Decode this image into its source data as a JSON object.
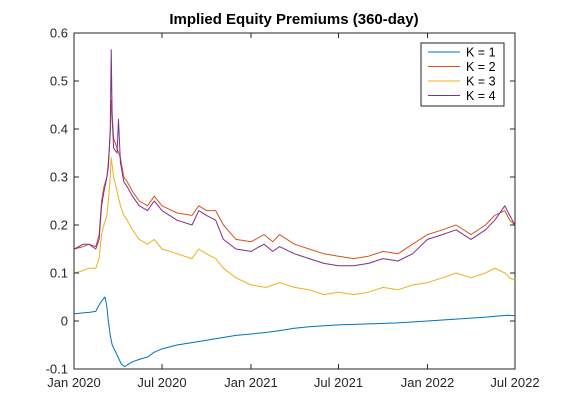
{
  "chart_data": {
    "type": "line",
    "title": "Implied Equity Premiums (360-day)",
    "xlabel": "",
    "ylabel": "",
    "x_ticks": [
      "Jan 2020",
      "Jul 2020",
      "Jan 2021",
      "Jul 2021",
      "Jan 2022",
      "Jul 2022"
    ],
    "xlim": [
      "2020-01-01",
      "2022-07-01"
    ],
    "ylim": [
      -0.1,
      0.6
    ],
    "y_ticks": [
      "-0.1",
      "0",
      "0.1",
      "0.2",
      "0.3",
      "0.4",
      "0.5",
      "0.6"
    ],
    "grid": false,
    "legend_position": "top-right",
    "series": [
      {
        "name": "K = 1",
        "color": "#0072BD",
        "points": [
          [
            "2020-01-02",
            0.015
          ],
          [
            "2020-01-20",
            0.017
          ],
          [
            "2020-02-01",
            0.018
          ],
          [
            "2020-02-15",
            0.02
          ],
          [
            "2020-02-20",
            0.03
          ],
          [
            "2020-02-26",
            0.04
          ],
          [
            "2020-03-01",
            0.045
          ],
          [
            "2020-03-05",
            0.05
          ],
          [
            "2020-03-09",
            0.03
          ],
          [
            "2020-03-12",
            0.0
          ],
          [
            "2020-03-16",
            -0.03
          ],
          [
            "2020-03-20",
            -0.05
          ],
          [
            "2020-03-25",
            -0.06
          ],
          [
            "2020-04-01",
            -0.075
          ],
          [
            "2020-04-08",
            -0.09
          ],
          [
            "2020-04-15",
            -0.095
          ],
          [
            "2020-04-22",
            -0.09
          ],
          [
            "2020-05-01",
            -0.085
          ],
          [
            "2020-05-15",
            -0.08
          ],
          [
            "2020-06-01",
            -0.075
          ],
          [
            "2020-06-15",
            -0.065
          ],
          [
            "2020-07-01",
            -0.058
          ],
          [
            "2020-08-01",
            -0.05
          ],
          [
            "2020-09-01",
            -0.045
          ],
          [
            "2020-10-01",
            -0.04
          ],
          [
            "2020-11-01",
            -0.035
          ],
          [
            "2020-12-01",
            -0.03
          ],
          [
            "2021-01-01",
            -0.027
          ],
          [
            "2021-02-01",
            -0.024
          ],
          [
            "2021-03-01",
            -0.02
          ],
          [
            "2021-04-01",
            -0.015
          ],
          [
            "2021-05-01",
            -0.012
          ],
          [
            "2021-06-01",
            -0.01
          ],
          [
            "2021-07-01",
            -0.008
          ],
          [
            "2021-09-01",
            -0.006
          ],
          [
            "2021-11-01",
            -0.004
          ],
          [
            "2022-01-01",
            0.0
          ],
          [
            "2022-03-01",
            0.004
          ],
          [
            "2022-05-01",
            0.008
          ],
          [
            "2022-06-15",
            0.012
          ],
          [
            "2022-07-01",
            0.011
          ]
        ]
      },
      {
        "name": "K = 2",
        "color": "#D95319",
        "points": [
          [
            "2020-01-02",
            0.15
          ],
          [
            "2020-01-20",
            0.155
          ],
          [
            "2020-02-01",
            0.16
          ],
          [
            "2020-02-15",
            0.155
          ],
          [
            "2020-02-22",
            0.18
          ],
          [
            "2020-02-27",
            0.25
          ],
          [
            "2020-03-03",
            0.28
          ],
          [
            "2020-03-09",
            0.3
          ],
          [
            "2020-03-12",
            0.33
          ],
          [
            "2020-03-16",
            0.39
          ],
          [
            "2020-03-18",
            0.46
          ],
          [
            "2020-03-23",
            0.38
          ],
          [
            "2020-03-30",
            0.36
          ],
          [
            "2020-04-06",
            0.34
          ],
          [
            "2020-04-13",
            0.3
          ],
          [
            "2020-04-20",
            0.29
          ],
          [
            "2020-05-01",
            0.27
          ],
          [
            "2020-05-15",
            0.25
          ],
          [
            "2020-06-01",
            0.24
          ],
          [
            "2020-06-15",
            0.26
          ],
          [
            "2020-07-01",
            0.24
          ],
          [
            "2020-08-01",
            0.225
          ],
          [
            "2020-09-01",
            0.22
          ],
          [
            "2020-09-15",
            0.24
          ],
          [
            "2020-10-01",
            0.23
          ],
          [
            "2020-10-20",
            0.23
          ],
          [
            "2020-11-05",
            0.2
          ],
          [
            "2020-12-01",
            0.17
          ],
          [
            "2021-01-01",
            0.165
          ],
          [
            "2021-01-28",
            0.18
          ],
          [
            "2021-02-15",
            0.165
          ],
          [
            "2021-03-01",
            0.18
          ],
          [
            "2021-04-01",
            0.16
          ],
          [
            "2021-05-01",
            0.15
          ],
          [
            "2021-06-01",
            0.14
          ],
          [
            "2021-07-01",
            0.135
          ],
          [
            "2021-08-01",
            0.13
          ],
          [
            "2021-09-01",
            0.135
          ],
          [
            "2021-10-01",
            0.145
          ],
          [
            "2021-11-01",
            0.14
          ],
          [
            "2021-12-01",
            0.16
          ],
          [
            "2022-01-01",
            0.18
          ],
          [
            "2022-02-01",
            0.19
          ],
          [
            "2022-03-01",
            0.2
          ],
          [
            "2022-04-01",
            0.18
          ],
          [
            "2022-05-01",
            0.2
          ],
          [
            "2022-05-20",
            0.22
          ],
          [
            "2022-06-10",
            0.23
          ],
          [
            "2022-06-20",
            0.21
          ],
          [
            "2022-07-01",
            0.2
          ]
        ]
      },
      {
        "name": "K = 3",
        "color": "#EDB120",
        "points": [
          [
            "2020-01-02",
            0.1
          ],
          [
            "2020-01-20",
            0.105
          ],
          [
            "2020-02-01",
            0.11
          ],
          [
            "2020-02-15",
            0.11
          ],
          [
            "2020-02-22",
            0.13
          ],
          [
            "2020-02-27",
            0.18
          ],
          [
            "2020-03-03",
            0.2
          ],
          [
            "2020-03-09",
            0.22
          ],
          [
            "2020-03-12",
            0.25
          ],
          [
            "2020-03-16",
            0.3
          ],
          [
            "2020-03-18",
            0.34
          ],
          [
            "2020-03-23",
            0.3
          ],
          [
            "2020-03-30",
            0.27
          ],
          [
            "2020-04-06",
            0.24
          ],
          [
            "2020-04-13",
            0.22
          ],
          [
            "2020-04-20",
            0.21
          ],
          [
            "2020-05-01",
            0.19
          ],
          [
            "2020-05-15",
            0.17
          ],
          [
            "2020-06-01",
            0.16
          ],
          [
            "2020-06-15",
            0.17
          ],
          [
            "2020-07-01",
            0.15
          ],
          [
            "2020-08-01",
            0.14
          ],
          [
            "2020-09-01",
            0.13
          ],
          [
            "2020-09-15",
            0.15
          ],
          [
            "2020-10-01",
            0.14
          ],
          [
            "2020-10-20",
            0.13
          ],
          [
            "2020-11-05",
            0.11
          ],
          [
            "2020-12-01",
            0.09
          ],
          [
            "2021-01-01",
            0.075
          ],
          [
            "2021-02-01",
            0.07
          ],
          [
            "2021-03-01",
            0.08
          ],
          [
            "2021-04-01",
            0.07
          ],
          [
            "2021-05-01",
            0.065
          ],
          [
            "2021-06-01",
            0.055
          ],
          [
            "2021-07-01",
            0.06
          ],
          [
            "2021-08-01",
            0.055
          ],
          [
            "2021-09-01",
            0.06
          ],
          [
            "2021-10-01",
            0.07
          ],
          [
            "2021-11-01",
            0.065
          ],
          [
            "2021-12-01",
            0.075
          ],
          [
            "2022-01-01",
            0.08
          ],
          [
            "2022-02-01",
            0.09
          ],
          [
            "2022-03-01",
            0.1
          ],
          [
            "2022-04-01",
            0.09
          ],
          [
            "2022-05-01",
            0.1
          ],
          [
            "2022-05-20",
            0.11
          ],
          [
            "2022-06-10",
            0.1
          ],
          [
            "2022-06-20",
            0.09
          ],
          [
            "2022-07-01",
            0.085
          ]
        ]
      },
      {
        "name": "K = 4",
        "color": "#7E2F8E",
        "points": [
          [
            "2020-01-02",
            0.15
          ],
          [
            "2020-01-20",
            0.16
          ],
          [
            "2020-02-01",
            0.16
          ],
          [
            "2020-02-15",
            0.15
          ],
          [
            "2020-02-22",
            0.17
          ],
          [
            "2020-02-27",
            0.24
          ],
          [
            "2020-03-03",
            0.27
          ],
          [
            "2020-03-09",
            0.3
          ],
          [
            "2020-03-12",
            0.32
          ],
          [
            "2020-03-16",
            0.4
          ],
          [
            "2020-03-18",
            0.565
          ],
          [
            "2020-03-20",
            0.42
          ],
          [
            "2020-03-23",
            0.36
          ],
          [
            "2020-03-30",
            0.35
          ],
          [
            "2020-04-02",
            0.42
          ],
          [
            "2020-04-06",
            0.33
          ],
          [
            "2020-04-13",
            0.29
          ],
          [
            "2020-04-20",
            0.28
          ],
          [
            "2020-05-01",
            0.26
          ],
          [
            "2020-05-15",
            0.24
          ],
          [
            "2020-06-01",
            0.23
          ],
          [
            "2020-06-15",
            0.25
          ],
          [
            "2020-07-01",
            0.23
          ],
          [
            "2020-08-01",
            0.21
          ],
          [
            "2020-09-01",
            0.2
          ],
          [
            "2020-09-15",
            0.23
          ],
          [
            "2020-10-01",
            0.22
          ],
          [
            "2020-10-20",
            0.21
          ],
          [
            "2020-11-05",
            0.17
          ],
          [
            "2020-12-01",
            0.15
          ],
          [
            "2021-01-01",
            0.145
          ],
          [
            "2021-01-28",
            0.16
          ],
          [
            "2021-02-15",
            0.145
          ],
          [
            "2021-03-01",
            0.155
          ],
          [
            "2021-04-01",
            0.14
          ],
          [
            "2021-05-01",
            0.13
          ],
          [
            "2021-06-01",
            0.12
          ],
          [
            "2021-07-01",
            0.115
          ],
          [
            "2021-08-01",
            0.115
          ],
          [
            "2021-09-01",
            0.12
          ],
          [
            "2021-10-01",
            0.13
          ],
          [
            "2021-11-01",
            0.125
          ],
          [
            "2021-12-01",
            0.14
          ],
          [
            "2022-01-01",
            0.17
          ],
          [
            "2022-02-01",
            0.18
          ],
          [
            "2022-03-01",
            0.19
          ],
          [
            "2022-04-01",
            0.17
          ],
          [
            "2022-05-01",
            0.19
          ],
          [
            "2022-05-20",
            0.21
          ],
          [
            "2022-06-10",
            0.24
          ],
          [
            "2022-06-20",
            0.22
          ],
          [
            "2022-07-01",
            0.2
          ]
        ]
      }
    ]
  }
}
